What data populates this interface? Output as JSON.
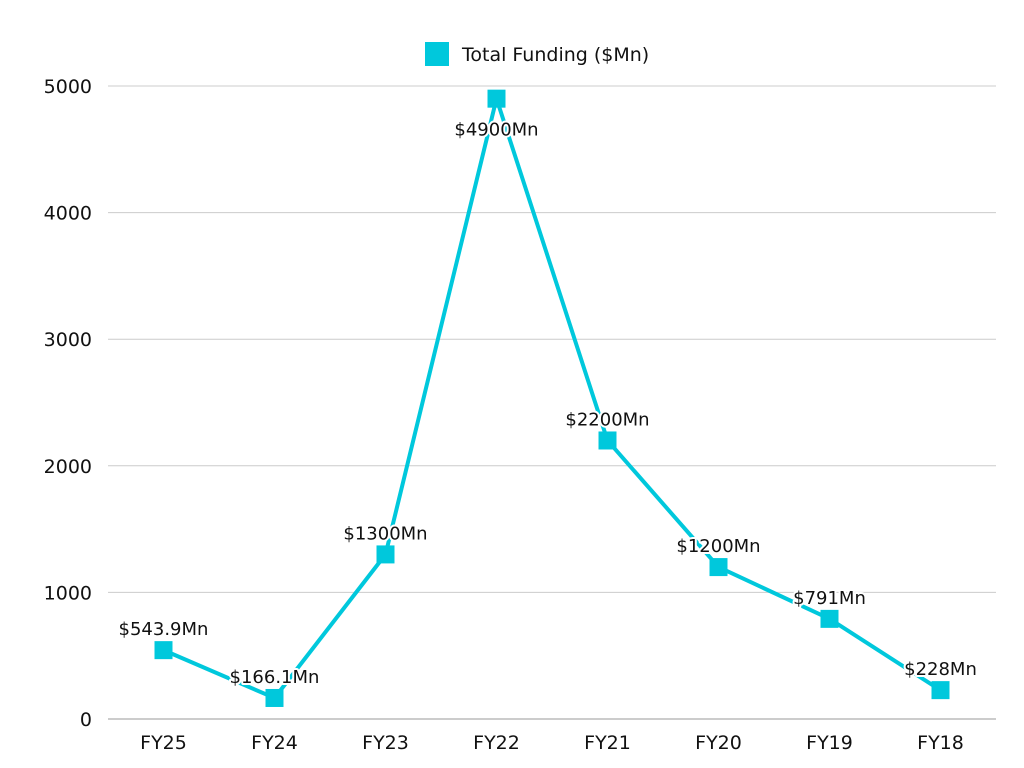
{
  "chart_data": {
    "type": "line",
    "title": "",
    "xlabel": "",
    "ylabel": "",
    "categories": [
      "FY25",
      "FY24",
      "FY23",
      "FY22",
      "FY21",
      "FY20",
      "FY19",
      "FY18"
    ],
    "series": [
      {
        "name": "Total Funding ($Mn)",
        "color": "#00C8DC",
        "values": [
          543.9,
          166.1,
          1300,
          4900,
          2200,
          1200,
          791,
          228
        ],
        "data_labels": [
          "$543.9Mn",
          "$166.1Mn",
          "$1300Mn",
          "$4900Mn",
          "$2200Mn",
          "$1200Mn",
          "$791Mn",
          "$228Mn"
        ]
      }
    ],
    "ylim": [
      0,
      5000
    ],
    "yticks": [
      0,
      1000,
      2000,
      3000,
      4000,
      5000
    ],
    "grid": true,
    "legend": "top-center"
  }
}
